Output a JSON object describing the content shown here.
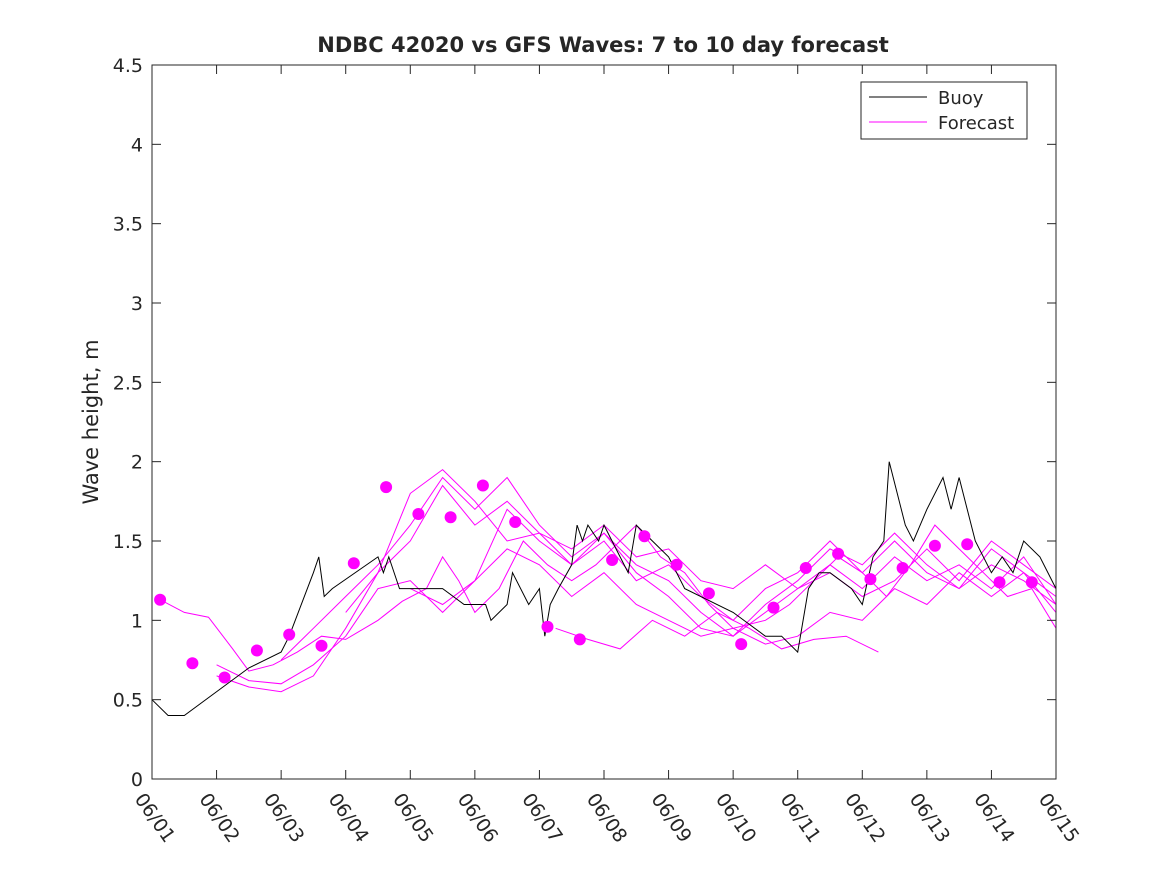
{
  "chart_data": {
    "type": "line",
    "title": "NDBC 42020 vs GFS Waves: 7 to 10 day forecast",
    "xlabel": "",
    "ylabel": "Wave height, m",
    "xlim": [
      "06/01",
      "06/15"
    ],
    "ylim": [
      0,
      4.5
    ],
    "x_ticks": [
      "06/01",
      "06/02",
      "06/03",
      "06/04",
      "06/05",
      "06/06",
      "06/07",
      "06/08",
      "06/09",
      "06/10",
      "06/11",
      "06/12",
      "06/13",
      "06/14",
      "06/15"
    ],
    "y_ticks": [
      "0",
      "0.5",
      "1",
      "1.5",
      "2",
      "2.5",
      "3",
      "3.5",
      "4",
      "4.5"
    ],
    "grid": false,
    "legend": {
      "placement": "top-right",
      "entries": [
        "Buoy",
        "Forecast"
      ]
    },
    "colors": {
      "Buoy": "#000000",
      "Forecast": "#ff00ff"
    },
    "series": [
      {
        "name": "Buoy",
        "style": "line",
        "x": [
          "06/01 00:00",
          "06/01 06:00",
          "06/01 12:00",
          "06/02 12:00",
          "06/03 00:00",
          "06/03 03:00",
          "06/03 12:00",
          "06/03 14:00",
          "06/03 16:00",
          "06/03 19:00",
          "06/04 12:00",
          "06/04 14:00",
          "06/04 16:00",
          "06/04 20:00",
          "06/05 12:00",
          "06/05 20:00",
          "06/06 04:00",
          "06/06 06:00",
          "06/06 12:00",
          "06/06 14:00",
          "06/06 20:00",
          "06/07 00:00",
          "06/07 02:00",
          "06/07 04:00",
          "06/07 07:00",
          "06/07 12:00",
          "06/07 14:00",
          "06/07 16:00",
          "06/07 18:00",
          "06/07 22:00",
          "06/08 00:00",
          "06/08 06:00",
          "06/08 09:00",
          "06/08 12:00",
          "06/08 18:00",
          "06/09 00:00",
          "06/09 06:00",
          "06/10 00:00",
          "06/10 12:00",
          "06/10 18:00",
          "06/11 00:00",
          "06/11 04:00",
          "06/11 08:00",
          "06/11 12:00",
          "06/11 20:00",
          "06/12 00:00",
          "06/12 04:00",
          "06/12 08:00",
          "06/12 10:00",
          "06/12 16:00",
          "06/12 19:00",
          "06/13 00:00",
          "06/13 06:00",
          "06/13 09:00",
          "06/13 12:00",
          "06/13 18:00",
          "06/14 00:00",
          "06/14 04:00",
          "06/14 08:00",
          "06/14 12:00",
          "06/14 18:00",
          "06/15 00:00"
        ],
        "y": [
          0.5,
          0.4,
          0.4,
          0.7,
          0.8,
          0.9,
          1.3,
          1.4,
          1.15,
          1.2,
          1.4,
          1.3,
          1.4,
          1.2,
          1.2,
          1.1,
          1.1,
          1.0,
          1.1,
          1.3,
          1.1,
          1.2,
          0.9,
          1.1,
          1.2,
          1.35,
          1.6,
          1.5,
          1.6,
          1.5,
          1.6,
          1.4,
          1.3,
          1.6,
          1.5,
          1.4,
          1.2,
          1.05,
          0.9,
          0.9,
          0.8,
          1.2,
          1.3,
          1.3,
          1.2,
          1.1,
          1.4,
          1.5,
          2.0,
          1.6,
          1.5,
          1.7,
          1.9,
          1.7,
          1.9,
          1.5,
          1.3,
          1.4,
          1.3,
          1.5,
          1.4,
          1.2
        ]
      },
      {
        "name": "Forecast",
        "style": "line",
        "x": [
          "06/01 03:00",
          "06/01 12:00",
          "06/01 21:00",
          "06/02 06:00",
          "06/02 12:00",
          "06/02 21:00",
          "06/03 06:00",
          "06/03 15:00",
          "06/04 00:00",
          "06/04 12:00",
          "06/04 21:00",
          "06/05 06:00",
          "06/05 12:00",
          "06/05 18:00",
          "06/06 00:00",
          "06/06 09:00",
          "06/06 18:00",
          "06/07 03:00",
          "06/07 12:00",
          "06/07 21:00",
          "06/08 06:00",
          "06/08 12:00",
          "06/08 21:00",
          "06/09 06:00",
          "06/09 15:00",
          "06/10 00:00",
          "06/10 12:00",
          "06/10 21:00",
          "06/11 06:00",
          "06/11 15:00",
          "06/12 00:00",
          "06/12 09:00",
          "06/12 18:00",
          "06/13 03:00",
          "06/13 12:00",
          "06/13 21:00",
          "06/14 06:00",
          "06/14 15:00",
          "06/15 00:00"
        ],
        "y": [
          1.13,
          1.05,
          1.02,
          0.82,
          0.68,
          0.72,
          0.8,
          0.9,
          0.88,
          1.0,
          1.12,
          1.2,
          1.4,
          1.25,
          1.05,
          1.2,
          1.5,
          1.35,
          1.25,
          1.35,
          1.5,
          1.6,
          1.4,
          1.3,
          1.1,
          0.95,
          1.0,
          1.1,
          1.25,
          1.4,
          1.3,
          1.15,
          1.35,
          1.6,
          1.45,
          1.3,
          1.15,
          1.2,
          0.95
        ]
      },
      {
        "name": "Forecast",
        "style": "line",
        "x": [
          "06/02 00:00",
          "06/02 12:00",
          "06/03 00:00",
          "06/03 12:00",
          "06/04 00:00",
          "06/04 12:00",
          "06/05 00:00",
          "06/05 12:00",
          "06/06 00:00",
          "06/06 12:00",
          "06/07 00:00",
          "06/07 12:00",
          "06/08 00:00",
          "06/08 12:00",
          "06/09 00:00",
          "06/09 12:00",
          "06/10 00:00",
          "06/10 12:00",
          "06/11 00:00",
          "06/11 12:00",
          "06/12 00:00",
          "06/12 12:00",
          "06/13 00:00",
          "06/13 12:00",
          "06/14 00:00",
          "06/14 12:00",
          "06/15 00:00"
        ],
        "y": [
          0.72,
          0.62,
          0.6,
          0.72,
          0.9,
          1.2,
          1.25,
          1.05,
          1.25,
          1.7,
          1.5,
          1.35,
          1.55,
          1.3,
          1.15,
          0.95,
          0.9,
          1.05,
          1.2,
          1.35,
          1.2,
          1.4,
          1.25,
          1.35,
          1.2,
          1.4,
          1.1
        ]
      },
      {
        "name": "Forecast",
        "style": "line",
        "x": [
          "06/02 00:00",
          "06/02 12:00",
          "06/03 00:00",
          "06/03 12:00",
          "06/04 00:00",
          "06/04 12:00",
          "06/05 00:00",
          "06/05 12:00",
          "06/06 00:00",
          "06/06 12:00",
          "06/07 00:00",
          "06/07 12:00",
          "06/08 00:00",
          "06/08 12:00",
          "06/09 00:00",
          "06/09 12:00",
          "06/10 00:00",
          "06/10 12:00",
          "06/11 00:00",
          "06/11 12:00",
          "06/12 00:00",
          "06/12 12:00",
          "06/13 00:00",
          "06/13 12:00",
          "06/14 00:00",
          "06/14 12:00",
          "06/15 00:00"
        ],
        "y": [
          0.65,
          0.58,
          0.55,
          0.65,
          0.95,
          1.3,
          1.5,
          1.85,
          1.6,
          1.75,
          1.55,
          1.35,
          1.5,
          1.25,
          1.35,
          1.15,
          1.0,
          1.2,
          1.3,
          1.5,
          1.3,
          1.5,
          1.3,
          1.2,
          1.35,
          1.25,
          1.1
        ]
      },
      {
        "name": "Forecast",
        "style": "line",
        "x": [
          "06/03 00:00",
          "06/03 12:00",
          "06/04 00:00",
          "06/04 12:00",
          "06/05 00:00",
          "06/05 12:00",
          "06/06 00:00",
          "06/06 12:00",
          "06/07 00:00",
          "06/07 12:00",
          "06/08 00:00",
          "06/08 12:00",
          "06/09 00:00",
          "06/09 12:00",
          "06/10 00:00",
          "06/10 12:00",
          "06/11 00:00",
          "06/11 12:00",
          "06/12 00:00",
          "06/12 12:00",
          "06/13 00:00",
          "06/13 12:00",
          "06/14 00:00",
          "06/14 12:00",
          "06/15 00:00"
        ],
        "y": [
          0.75,
          0.95,
          1.15,
          1.35,
          1.6,
          1.9,
          1.7,
          1.9,
          1.6,
          1.4,
          1.55,
          1.35,
          1.25,
          1.05,
          0.9,
          1.1,
          1.25,
          1.45,
          1.35,
          1.55,
          1.35,
          1.2,
          1.45,
          1.3,
          1.15
        ]
      },
      {
        "name": "Forecast",
        "style": "line",
        "x": [
          "06/04 00:00",
          "06/04 12:00",
          "06/05 00:00",
          "06/05 12:00",
          "06/06 00:00",
          "06/06 12:00",
          "06/07 00:00",
          "06/07 12:00",
          "06/08 00:00",
          "06/08 12:00",
          "06/09 00:00",
          "06/09 12:00",
          "06/10 00:00",
          "06/10 12:00",
          "06/11 00:00",
          "06/11 12:00",
          "06/12 00:00",
          "06/12 12:00",
          "06/13 00:00",
          "06/13 12:00",
          "06/14 00:00",
          "06/14 12:00",
          "06/15 00:00"
        ],
        "y": [
          1.05,
          1.3,
          1.8,
          1.95,
          1.75,
          1.5,
          1.55,
          1.45,
          1.6,
          1.4,
          1.45,
          1.25,
          1.2,
          1.35,
          1.2,
          1.3,
          1.15,
          1.25,
          1.45,
          1.25,
          1.5,
          1.35,
          1.2
        ]
      },
      {
        "name": "Forecast",
        "style": "line",
        "x": [
          "06/05 00:00",
          "06/05 12:00",
          "06/06 00:00",
          "06/06 12:00",
          "06/07 00:00",
          "06/07 12:00",
          "06/08 00:00",
          "06/08 12:00",
          "06/09 00:00",
          "06/09 12:00",
          "06/10 00:00",
          "06/10 12:00",
          "06/11 00:00",
          "06/11 12:00",
          "06/12 00:00",
          "06/12 12:00",
          "06/13 00:00",
          "06/13 12:00",
          "06/14 00:00",
          "06/14 12:00",
          "06/15 00:00"
        ],
        "y": [
          1.2,
          1.1,
          1.25,
          1.45,
          1.35,
          1.15,
          1.3,
          1.1,
          1.0,
          0.9,
          0.95,
          0.85,
          0.9,
          1.05,
          1.0,
          1.2,
          1.1,
          1.3,
          1.15,
          1.3,
          1.05
        ]
      },
      {
        "name": "Forecast",
        "style": "line",
        "x": [
          "06/07 06:00",
          "06/07 18:00",
          "06/08 06:00",
          "06/08 18:00",
          "06/09 06:00",
          "06/09 18:00",
          "06/10 06:00",
          "06/10 18:00",
          "06/11 06:00",
          "06/11 18:00",
          "06/12 06:00"
        ],
        "y": [
          0.95,
          0.88,
          0.82,
          1.0,
          0.9,
          1.05,
          0.95,
          0.82,
          0.88,
          0.9,
          0.8
        ]
      },
      {
        "name": "Forecast",
        "style": "markers",
        "x": [
          "06/01 03:00",
          "06/01 15:00",
          "06/02 03:00",
          "06/02 15:00",
          "06/03 03:00",
          "06/03 15:00",
          "06/04 03:00",
          "06/04 15:00",
          "06/05 03:00",
          "06/05 15:00",
          "06/06 03:00",
          "06/06 15:00",
          "06/07 03:00",
          "06/07 15:00",
          "06/08 03:00",
          "06/08 15:00",
          "06/09 03:00",
          "06/09 15:00",
          "06/10 03:00",
          "06/10 15:00",
          "06/11 03:00",
          "06/11 15:00",
          "06/12 03:00",
          "06/12 15:00",
          "06/13 03:00",
          "06/13 15:00",
          "06/14 03:00",
          "06/14 15:00"
        ],
        "y": [
          1.13,
          0.73,
          0.64,
          0.81,
          0.91,
          0.84,
          1.36,
          1.84,
          1.67,
          1.65,
          1.85,
          1.62,
          0.96,
          0.88,
          1.38,
          1.53,
          1.35,
          1.17,
          0.85,
          1.08,
          1.33,
          1.42,
          1.26,
          1.33,
          1.47,
          1.48,
          1.24,
          1.24
        ]
      }
    ]
  }
}
